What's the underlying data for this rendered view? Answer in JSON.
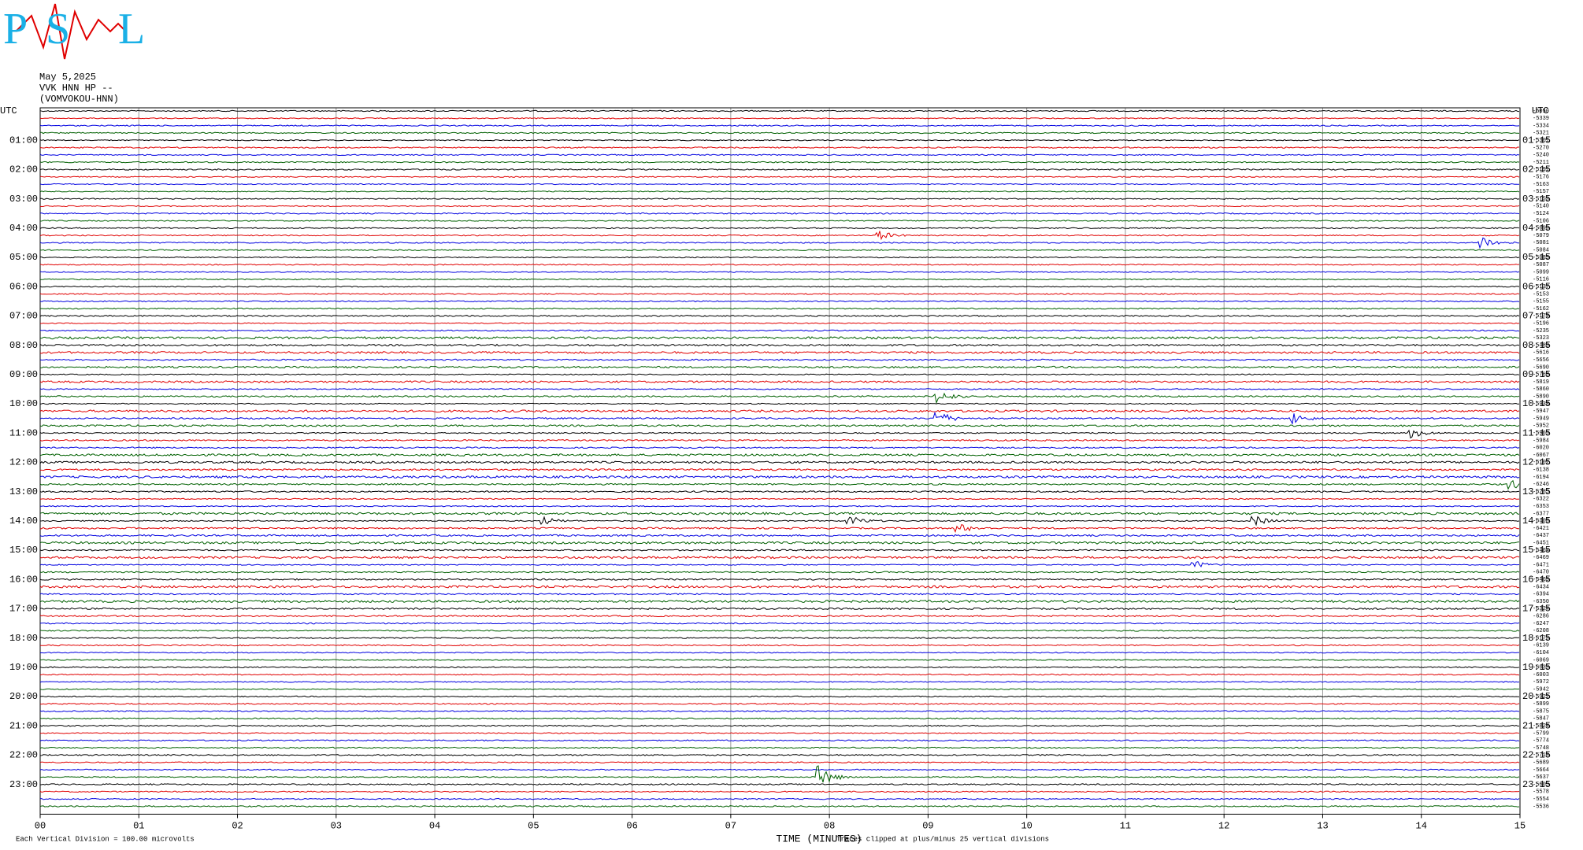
{
  "chart_data": {
    "type": "helicorder",
    "logo": [
      "P",
      "S",
      "L"
    ],
    "header": [
      "May 5,2025",
      "VVK HNN HP --",
      "(VOMVOKOU-HNN)"
    ],
    "left_label": "UTC",
    "right_label": "UTC",
    "left_times": [
      "01:00",
      "02:00",
      "03:00",
      "04:00",
      "05:00",
      "06:00",
      "07:00",
      "08:00",
      "09:00",
      "10:00",
      "11:00",
      "12:00",
      "13:00",
      "14:00",
      "15:00",
      "16:00",
      "17:00",
      "18:00",
      "19:00",
      "20:00",
      "21:00",
      "22:00",
      "23:00"
    ],
    "right_times": [
      "01:15",
      "02:15",
      "03:15",
      "04:15",
      "05:15",
      "06:15",
      "07:15",
      "08:15",
      "09:15",
      "10:15",
      "11:15",
      "12:15",
      "13:15",
      "14:15",
      "15:15",
      "16:15",
      "17:15",
      "18:15",
      "19:15",
      "20:15",
      "21:15",
      "22:15",
      "23:15"
    ],
    "trace_colors": [
      "#000000",
      "#e00000",
      "#0000e0",
      "#006000"
    ],
    "offsets": [
      -5050,
      -5339,
      -5334,
      -5321,
      -5301,
      -5270,
      -5240,
      -5211,
      -5191,
      -5176,
      -5163,
      -5157,
      -5153,
      -5140,
      -5124,
      -5106,
      -5090,
      -5079,
      -5081,
      -5084,
      -5085,
      -5087,
      -5099,
      -5116,
      -5137,
      -5153,
      -5155,
      -5162,
      -5179,
      -5196,
      -5235,
      -5323,
      -5480,
      -5616,
      -5656,
      -5690,
      -5768,
      -5819,
      -5860,
      -5890,
      -5938,
      -5947,
      -5949,
      -5952,
      -5965,
      -5984,
      -6020,
      -6067,
      -6102,
      -6138,
      -6194,
      -6246,
      -6285,
      -6322,
      -6353,
      -6377,
      -6408,
      -6421,
      -6437,
      -6451,
      -6464,
      -6469,
      -6471,
      -6470,
      -6463,
      -6434,
      -6394,
      -6350,
      -6324,
      -6286,
      -6247,
      -6208,
      -6173,
      -6139,
      -6104,
      -6069,
      -6033,
      -6003,
      -5972,
      -5942,
      -5922,
      -5899,
      -5875,
      -5847,
      -5824,
      -5799,
      -5774,
      -5748,
      -5718,
      -5689,
      -5664,
      -5637,
      -5605,
      -5578,
      -5554,
      -5536
    ],
    "xlim": [
      0,
      15
    ],
    "xticks": [
      {
        "value": 0,
        "label": "00"
      },
      {
        "value": 1,
        "label": "01"
      },
      {
        "value": 2,
        "label": "02"
      },
      {
        "value": 3,
        "label": "03"
      },
      {
        "value": 4,
        "label": "04"
      },
      {
        "value": 5,
        "label": "05"
      },
      {
        "value": 6,
        "label": "06"
      },
      {
        "value": 7,
        "label": "07"
      },
      {
        "value": 8,
        "label": "08"
      },
      {
        "value": 9,
        "label": "09"
      },
      {
        "value": 10,
        "label": "10"
      },
      {
        "value": 11,
        "label": "11"
      },
      {
        "value": 12,
        "label": "12"
      },
      {
        "value": 13,
        "label": "13"
      },
      {
        "value": 14,
        "label": "14"
      },
      {
        "value": 15,
        "label": "15"
      }
    ],
    "x_label": "TIME (MINUTES)",
    "scale_note": "Each Vertical Division =  100.00 microvolts",
    "clip_note": "Traces clipped at plus/minus 25 vertical divisions"
  }
}
